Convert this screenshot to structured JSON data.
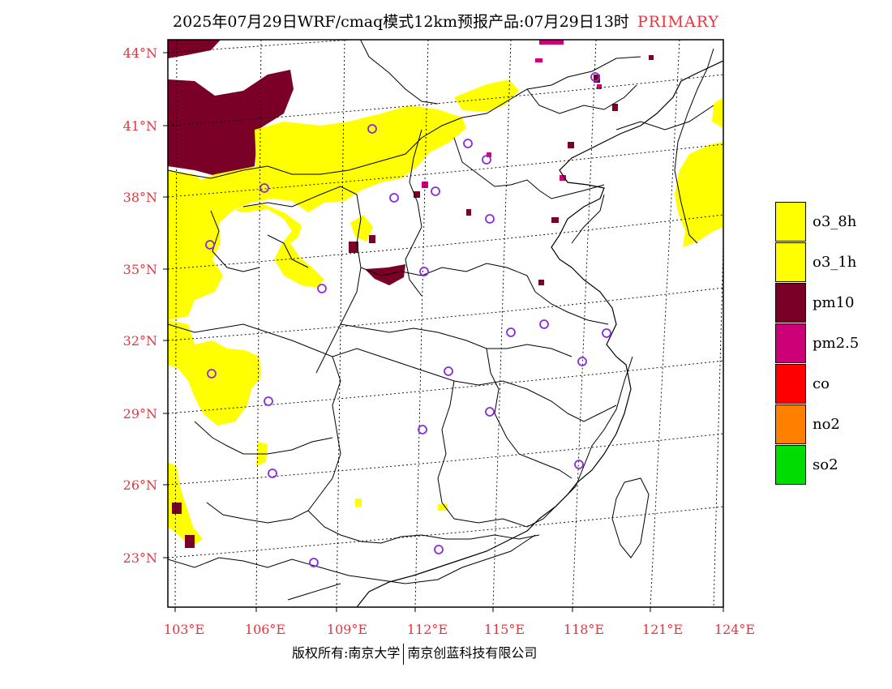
{
  "title": {
    "main": "2025年07月29日WRF/cmaq模式12km预报产品:07月29日13时",
    "tag": "PRIMARY"
  },
  "map": {
    "lat_labels": [
      "44°N",
      "41°N",
      "38°N",
      "35°N",
      "32°N",
      "29°N",
      "26°N",
      "23°N"
    ],
    "lon_labels": [
      "103°E",
      "106°E",
      "109°E",
      "112°E",
      "115°E",
      "118°E",
      "121°E",
      "124°E"
    ],
    "station_marker_color": "#8a2be2",
    "pollutant_colors": {
      "o3": "#ffff00",
      "pm10": "#7a0027",
      "pm25": "#cc0077"
    }
  },
  "legend": [
    {
      "label": "o3_8h",
      "color": "#ffff00"
    },
    {
      "label": "o3_1h",
      "color": "#ffff00"
    },
    {
      "label": "pm10",
      "color": "#7a0027"
    },
    {
      "label": "pm2.5",
      "color": "#cc0077"
    },
    {
      "label": "co",
      "color": "#ff0000"
    },
    {
      "label": "no2",
      "color": "#ff8000"
    },
    {
      "label": "so2",
      "color": "#00dd00"
    }
  ],
  "footer": {
    "left": "版权所有:南京大学",
    "right": "南京创蓝科技有限公司"
  }
}
